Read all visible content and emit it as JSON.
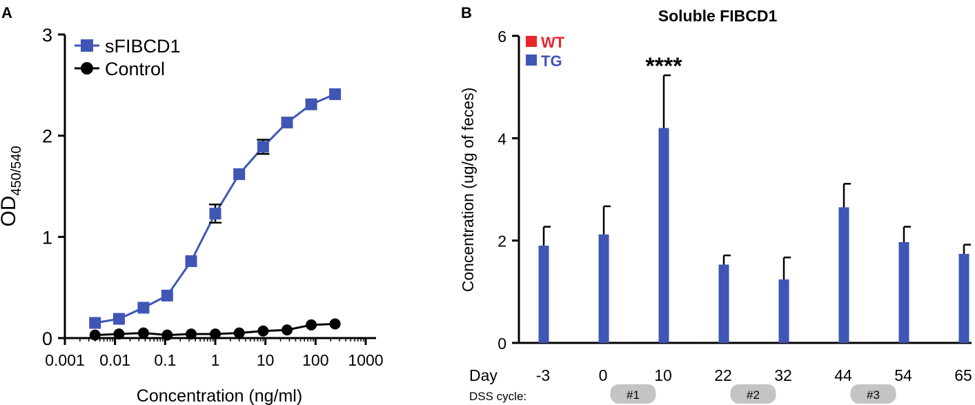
{
  "chart_data": [
    {
      "panel": "A",
      "type": "line",
      "title": "",
      "xlabel": "Concentration (ng/ml)",
      "ylabel_main": "OD",
      "ylabel_sub": "450/540",
      "x_scale": "log",
      "xlim": [
        0.001,
        1000
      ],
      "ylim": [
        0,
        3
      ],
      "x_ticks": [
        0.001,
        0.01,
        0.1,
        1,
        10,
        100,
        1000
      ],
      "x_tick_labels": [
        "0.001",
        "0.01",
        "0.1",
        "1",
        "10",
        "100",
        "1000"
      ],
      "y_ticks": [
        0,
        1,
        2,
        3
      ],
      "y_tick_labels": [
        "0",
        "1",
        "2",
        "3"
      ],
      "legend_position": "top-left",
      "x": [
        0.004,
        0.012,
        0.037,
        0.11,
        0.33,
        1,
        3,
        9,
        27,
        82,
        245
      ],
      "series": [
        {
          "name": "sFIBCD1",
          "color": "#3f56b5",
          "marker": "square",
          "values": [
            0.15,
            0.19,
            0.3,
            0.42,
            0.76,
            1.23,
            1.62,
            1.89,
            2.13,
            2.31,
            2.41
          ],
          "error": [
            0,
            0,
            0,
            0,
            0,
            0.09,
            0,
            0.07,
            0,
            0,
            0
          ]
        },
        {
          "name": "Control",
          "color": "#000000",
          "marker": "circle",
          "values": [
            0.03,
            0.04,
            0.05,
            0.03,
            0.04,
            0.04,
            0.05,
            0.07,
            0.08,
            0.13,
            0.14
          ],
          "error": [
            0,
            0,
            0,
            0,
            0,
            0,
            0,
            0,
            0,
            0,
            0
          ]
        }
      ]
    },
    {
      "panel": "B",
      "type": "bar",
      "title": "Soluble FIBCD1",
      "xlabel": "",
      "x_row_label": "Day",
      "ylabel": "Concentration (ug/g of feces)",
      "ylim": [
        0,
        6
      ],
      "y_ticks": [
        0,
        2,
        4,
        6
      ],
      "y_tick_labels": [
        "0",
        "2",
        "4",
        "6"
      ],
      "categories": [
        "-3",
        "0",
        "10",
        "22",
        "32",
        "44",
        "54",
        "65"
      ],
      "legend_position": "top-left",
      "series": [
        {
          "name": "WT",
          "color": "#e8262b",
          "values": [
            0,
            0,
            0,
            0,
            0,
            0,
            0,
            0
          ],
          "error": [
            0,
            0,
            0,
            0,
            0,
            0,
            0,
            0
          ]
        },
        {
          "name": "TG",
          "color": "#3f56b5",
          "values": [
            1.9,
            2.12,
            4.2,
            1.53,
            1.24,
            2.65,
            1.97,
            1.74
          ],
          "error": [
            0.37,
            0.55,
            1.03,
            0.18,
            0.43,
            0.46,
            0.3,
            0.18
          ]
        }
      ],
      "annotations": [
        {
          "category": "10",
          "text": "****"
        }
      ],
      "dss_label": "DSS cycle:",
      "dss_cycles": [
        {
          "label": "#1",
          "between": [
            "0",
            "10"
          ]
        },
        {
          "label": "#2",
          "between": [
            "22",
            "32"
          ]
        },
        {
          "label": "#3",
          "between": [
            "44",
            "54"
          ]
        }
      ]
    }
  ],
  "panel_labels": {
    "a": "A",
    "b": "B"
  }
}
